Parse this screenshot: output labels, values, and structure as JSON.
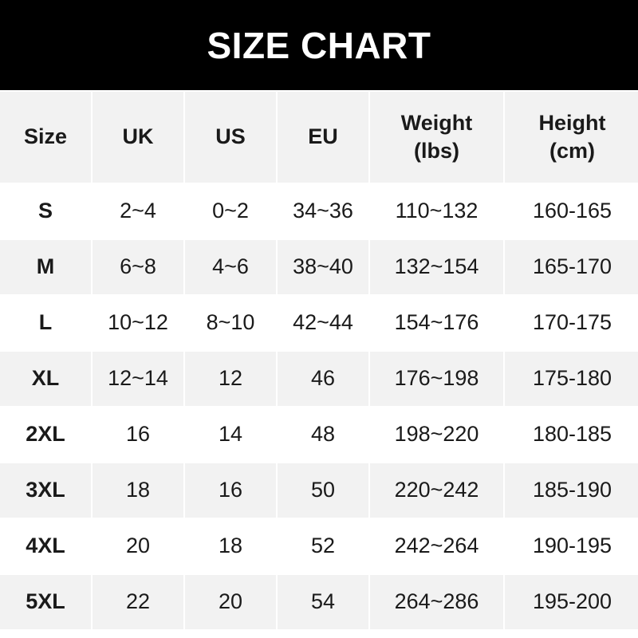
{
  "title": "SIZE CHART",
  "headers": [
    "Size",
    "UK",
    "US",
    "EU",
    "Weight\n(lbs)",
    "Height\n(cm)"
  ],
  "rows": [
    [
      "S",
      "2~4",
      "0~2",
      "34~36",
      "110~132",
      "160-165"
    ],
    [
      "M",
      "6~8",
      "4~6",
      "38~40",
      "132~154",
      "165-170"
    ],
    [
      "L",
      "10~12",
      "8~10",
      "42~44",
      "154~176",
      "170-175"
    ],
    [
      "XL",
      "12~14",
      "12",
      "46",
      "176~198",
      "175-180"
    ],
    [
      "2XL",
      "16",
      "14",
      "48",
      "198~220",
      "180-185"
    ],
    [
      "3XL",
      "18",
      "16",
      "50",
      "220~242",
      "185-190"
    ],
    [
      "4XL",
      "20",
      "18",
      "52",
      "242~264",
      "190-195"
    ],
    [
      "5XL",
      "22",
      "20",
      "54",
      "264~286",
      "195-200"
    ]
  ],
  "colors": {
    "banner": "#000000",
    "header_bg": "#f2f2f2",
    "stripe": "#f2f2f2"
  }
}
